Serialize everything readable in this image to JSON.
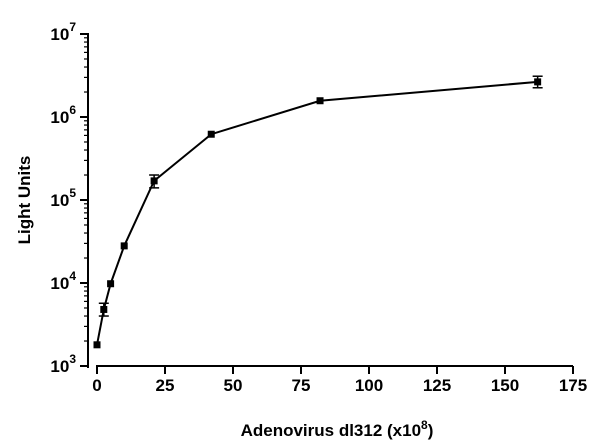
{
  "chart_data": {
    "type": "line",
    "title": "",
    "xlabel": "Adenovirus dl312 (x10",
    "xlabel_exp": "8",
    "xlabel_close": ")",
    "ylabel": "Light Units",
    "x_ticks": [
      "0",
      "25",
      "50",
      "75",
      "100",
      "125",
      "150",
      "175"
    ],
    "y_tick_base": "10",
    "y_tick_exps": [
      "3",
      "4",
      "5",
      "6",
      "7"
    ],
    "xlim": [
      0,
      175
    ],
    "ylim": [
      1000,
      10000000
    ],
    "y_scale": "log",
    "grid": false,
    "series": [
      {
        "points": [
          {
            "x": 0,
            "y": 1800
          },
          {
            "x": 2.5,
            "y": 4800,
            "err": [
              4000,
              5700
            ]
          },
          {
            "x": 5,
            "y": 9800
          },
          {
            "x": 10,
            "y": 28000
          },
          {
            "x": 21,
            "y": 170000,
            "err": [
              140000,
              200000
            ]
          },
          {
            "x": 42,
            "y": 620000
          },
          {
            "x": 82,
            "y": 1570000
          },
          {
            "x": 162,
            "y": 2650000,
            "err": [
              2250000,
              3100000
            ]
          }
        ]
      }
    ]
  }
}
